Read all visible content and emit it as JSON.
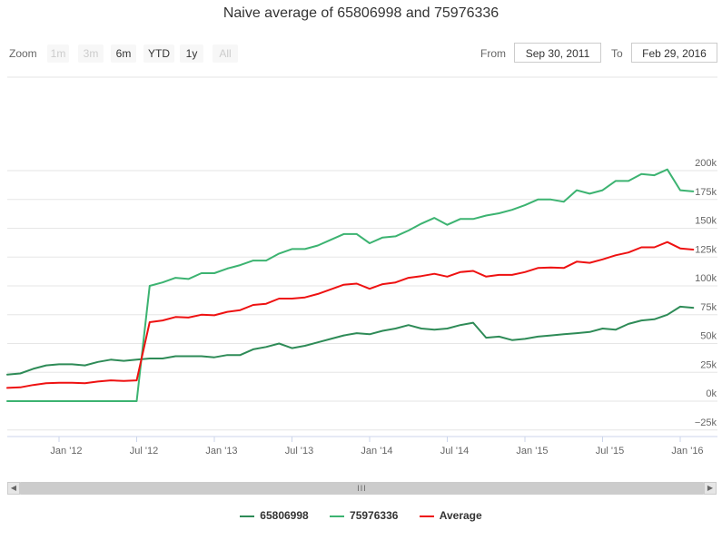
{
  "title": "Naive average of 65806998 and 75976336",
  "zoom": {
    "label": "Zoom",
    "buttons": [
      {
        "label": "1m",
        "disabled": true
      },
      {
        "label": "3m",
        "disabled": true
      },
      {
        "label": "6m",
        "disabled": false
      },
      {
        "label": "YTD",
        "disabled": false
      },
      {
        "label": "1y",
        "disabled": false
      },
      {
        "label": "All",
        "disabled": true
      }
    ]
  },
  "range": {
    "from_label": "From",
    "from_value": "Sep 30, 2011",
    "to_label": "To",
    "to_value": "Feb 29, 2016"
  },
  "colors": {
    "series1": "#2e8b57",
    "series2": "#3cb371",
    "average": "#ee1111",
    "grid": "#e6e6e6",
    "axis": "#ccd6eb"
  },
  "chart_data": {
    "type": "line",
    "title": "Naive average of 65806998 and 75976336",
    "x_ticks": [
      "Jan '12",
      "Jul '12",
      "Jan '13",
      "Jul '13",
      "Jan '14",
      "Jul '14",
      "Jan '15",
      "Jul '15",
      "Jan '16"
    ],
    "y_ticks": [
      "−25k",
      "0k",
      "25k",
      "50k",
      "75k",
      "100k",
      "125k",
      "150k",
      "175k",
      "200k"
    ],
    "ylim": [
      -25000,
      200000
    ],
    "x": [
      "2011-09",
      "2011-10",
      "2011-11",
      "2011-12",
      "2012-01",
      "2012-02",
      "2012-03",
      "2012-04",
      "2012-05",
      "2012-06",
      "2012-07",
      "2012-08",
      "2012-09",
      "2012-10",
      "2012-11",
      "2012-12",
      "2013-01",
      "2013-02",
      "2013-03",
      "2013-04",
      "2013-05",
      "2013-06",
      "2013-07",
      "2013-08",
      "2013-09",
      "2013-10",
      "2013-11",
      "2013-12",
      "2014-01",
      "2014-02",
      "2014-03",
      "2014-04",
      "2014-05",
      "2014-06",
      "2014-07",
      "2014-08",
      "2014-09",
      "2014-10",
      "2014-11",
      "2014-12",
      "2015-01",
      "2015-02",
      "2015-03",
      "2015-04",
      "2015-05",
      "2015-06",
      "2015-07",
      "2015-08",
      "2015-09",
      "2015-10",
      "2015-11",
      "2015-12",
      "2016-01",
      "2016-02"
    ],
    "series": [
      {
        "name": "65806998",
        "color": "#2e8b57",
        "values": [
          23000,
          24000,
          28000,
          31000,
          32000,
          32000,
          31000,
          34000,
          36000,
          35000,
          36000,
          37000,
          37000,
          39000,
          39000,
          39000,
          38000,
          40000,
          40000,
          45000,
          47000,
          50000,
          46000,
          48000,
          51000,
          54000,
          57000,
          59000,
          58000,
          61000,
          63000,
          66000,
          63000,
          62000,
          63000,
          66000,
          68000,
          55000,
          56000,
          53000,
          54000,
          56000,
          57000,
          58000,
          59000,
          60000,
          63000,
          62000,
          67000,
          70000,
          71000,
          75000,
          82000,
          81000
        ]
      },
      {
        "name": "75976336",
        "color": "#3cb371",
        "values": [
          0,
          0,
          0,
          0,
          0,
          0,
          0,
          0,
          0,
          0,
          0,
          100000,
          103000,
          107000,
          106000,
          111000,
          111000,
          115000,
          118000,
          122000,
          122000,
          128000,
          132000,
          132000,
          135000,
          140000,
          145000,
          145000,
          137000,
          142000,
          143000,
          148000,
          154000,
          159000,
          153000,
          158000,
          158000,
          161000,
          163000,
          166000,
          170000,
          175000,
          175000,
          173000,
          183000,
          180000,
          183000,
          191000,
          191000,
          197000,
          196000,
          201000,
          183000,
          182000
        ]
      },
      {
        "name": "Average",
        "color": "#ee1111",
        "values": [
          11500,
          12000,
          14000,
          15500,
          16000,
          16000,
          15500,
          17000,
          18000,
          17500,
          18000,
          68500,
          70000,
          73000,
          72500,
          75000,
          74500,
          77500,
          79000,
          83500,
          84500,
          89000,
          89000,
          90000,
          93000,
          97000,
          101000,
          102000,
          97500,
          101500,
          103000,
          107000,
          108500,
          110500,
          108000,
          112000,
          113000,
          108000,
          109500,
          109500,
          112000,
          115500,
          116000,
          115500,
          121000,
          120000,
          123000,
          126500,
          129000,
          133500,
          133500,
          138000,
          132500,
          131500
        ]
      }
    ]
  },
  "scrollbar": {
    "thumb_glyph": "III",
    "left_glyph": "◀",
    "right_glyph": "▶"
  },
  "legend": {
    "items": [
      {
        "label": "65806998"
      },
      {
        "label": "75976336"
      },
      {
        "label": "Average"
      }
    ]
  }
}
